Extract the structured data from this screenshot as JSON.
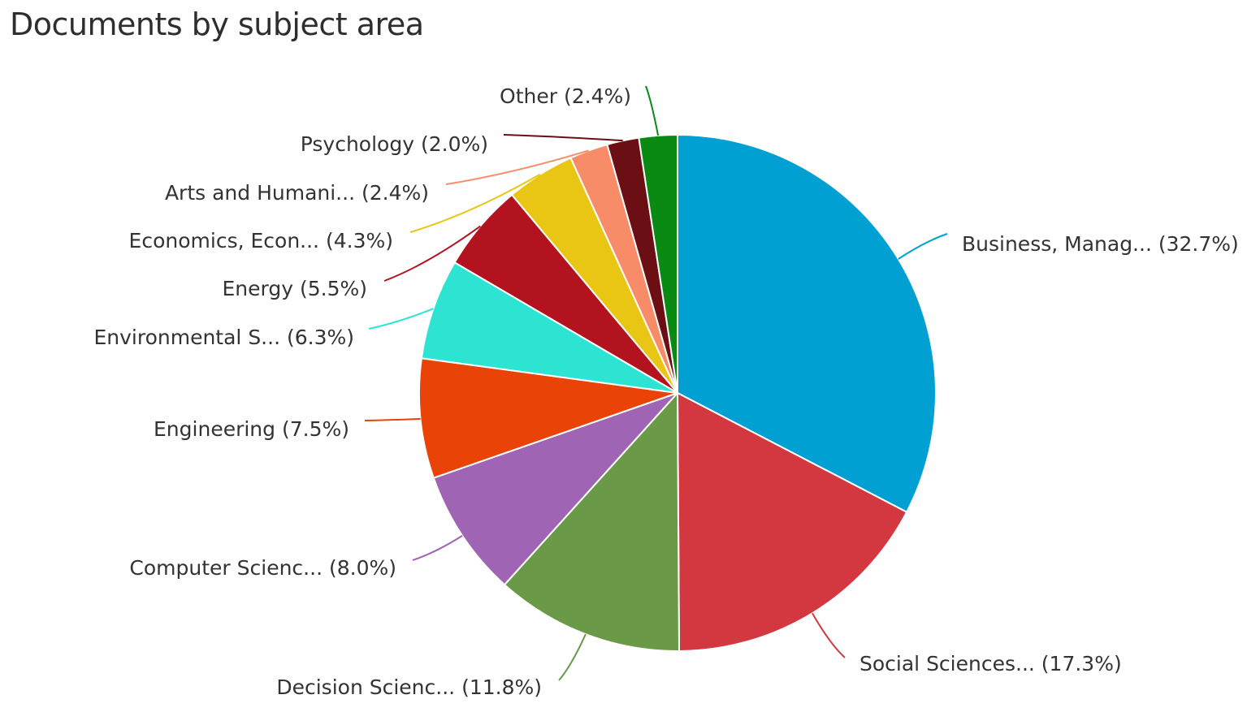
{
  "chart_data": {
    "type": "pie",
    "title": "Documents by subject area",
    "start": "top, clockwise",
    "slices": [
      {
        "label": "Business, Manag...",
        "value": 32.7,
        "display": "(32.7%)",
        "color": "#00a0d2"
      },
      {
        "label": "Social Sciences...",
        "value": 17.3,
        "display": "(17.3%)",
        "color": "#d33740"
      },
      {
        "label": "Decision Scienc...",
        "value": 11.8,
        "display": "(11.8%)",
        "color": "#6a9a48"
      },
      {
        "label": "Computer Scienc...",
        "value": 8.0,
        "display": "(8.0%)",
        "color": "#a064b4"
      },
      {
        "label": "Engineering",
        "value": 7.5,
        "display": "(7.5%)",
        "color": "#ea4308"
      },
      {
        "label": "Environmental S...",
        "value": 6.3,
        "display": "(6.3%)",
        "color": "#2de4d2"
      },
      {
        "label": "Energy",
        "value": 5.5,
        "display": "(5.5%)",
        "color": "#b3121f"
      },
      {
        "label": "Economics, Econ...",
        "value": 4.3,
        "display": "(4.3%)",
        "color": "#e9c613"
      },
      {
        "label": "Arts and Humani...",
        "value": 2.4,
        "display": "(2.4%)",
        "color": "#f98c68"
      },
      {
        "label": "Psychology",
        "value": 2.0,
        "display": "(2.0%)",
        "color": "#6b0f14"
      },
      {
        "label": "Other",
        "value": 2.4,
        "display": "(2.4%)",
        "color": "#0a8a12"
      }
    ]
  }
}
